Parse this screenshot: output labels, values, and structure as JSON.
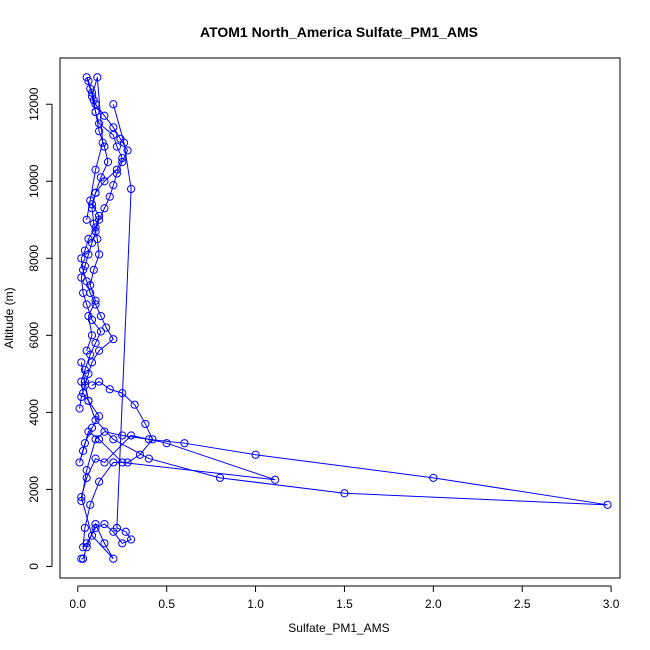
{
  "chart_data": {
    "type": "line",
    "title": "ATOM1 North_America Sulfate_PM1_AMS",
    "xlabel": "Sulfate_PM1_AMS",
    "ylabel": "Altitude (m)",
    "xlim": [
      -0.1,
      3.05
    ],
    "ylim": [
      -300,
      13200
    ],
    "x_ticks": [
      0.0,
      0.5,
      1.0,
      1.5,
      2.0,
      2.5,
      3.0
    ],
    "x_tick_labels": [
      "0.0",
      "0.5",
      "1.0",
      "1.5",
      "2.0",
      "2.5",
      "3.0"
    ],
    "y_ticks": [
      0,
      2000,
      4000,
      6000,
      8000,
      10000,
      12000
    ],
    "y_tick_labels": [
      "0",
      "2000",
      "4000",
      "6000",
      "8000",
      "10000",
      "12000"
    ],
    "grid": false,
    "legend": "none",
    "color": "#0000ff",
    "series": [
      {
        "x": [
          0.02,
          0.03,
          0.05,
          0.1,
          0.15,
          0.2,
          0.08,
          0.02,
          0.05,
          0.1,
          0.15,
          0.3,
          0.5,
          1.11,
          0.25,
          0.12,
          0.06,
          0.03,
          0.01,
          0.04,
          0.08,
          0.12,
          0.06,
          0.03,
          0.02,
          0.04,
          0.07,
          0.1,
          0.13,
          0.08,
          0.05,
          0.03,
          0.02,
          0.04,
          0.06,
          0.08,
          0.1,
          0.12,
          0.15,
          0.18,
          0.2,
          0.22,
          0.25,
          0.28,
          0.24,
          0.2,
          0.15,
          0.1,
          0.08,
          0.06,
          0.05,
          0.07,
          0.09,
          0.1,
          0.12,
          0.2,
          0.22,
          0.25,
          0.22,
          0.15,
          0.1,
          0.08,
          0.12,
          0.1,
          0.06,
          0.04,
          0.02,
          0.03,
          0.05,
          0.07,
          0.1,
          0.13,
          0.16,
          0.2,
          0.12,
          0.08,
          0.06,
          0.04,
          0.02,
          0.01
        ],
        "y": [
          200,
          200,
          500,
          1100,
          600,
          200,
          800,
          1800,
          2300,
          2800,
          2700,
          3400,
          3200,
          2250,
          2700,
          3300,
          3500,
          3000,
          2700,
          3200,
          3600,
          3900,
          4300,
          4500,
          4800,
          5100,
          5500,
          5800,
          6100,
          6400,
          6800,
          7100,
          7500,
          7800,
          8100,
          8400,
          8700,
          9000,
          9300,
          9600,
          9900,
          10200,
          10500,
          10800,
          11100,
          11400,
          11700,
          12000,
          12300,
          12600,
          12700,
          12400,
          12100,
          11800,
          11500,
          11200,
          10900,
          10600,
          10300,
          10000,
          9700,
          9400,
          9100,
          8800,
          8500,
          8200,
          8000,
          7700,
          7400,
          7100,
          6800,
          6500,
          6200,
          5900,
          5600,
          5300,
          5000,
          4700,
          4400,
          4100
        ]
      },
      {
        "x": [
          0.02,
          0.05,
          0.1,
          0.15,
          0.25,
          0.4,
          0.6,
          1.0,
          2.0,
          2.98,
          1.5,
          0.8,
          0.4,
          0.2,
          0.1,
          0.06,
          0.04,
          0.02
        ],
        "y": [
          1700,
          2500,
          3300,
          3500,
          3400,
          3300,
          3200,
          2900,
          2300,
          1600,
          1900,
          2300,
          2800,
          3300,
          3800,
          4300,
          4800,
          5300
        ]
      },
      {
        "x": [
          0.08,
          0.12,
          0.18,
          0.25,
          0.32,
          0.38,
          0.42,
          0.35,
          0.28,
          0.2,
          0.12,
          0.07,
          0.04,
          0.03,
          0.05,
          0.1,
          0.15,
          0.2,
          0.25,
          0.3,
          0.27,
          0.22,
          0.3,
          0.26,
          0.2
        ],
        "y": [
          4700,
          4800,
          4600,
          4500,
          4200,
          3700,
          3300,
          2900,
          2700,
          2700,
          2200,
          1600,
          1000,
          500,
          600,
          1000,
          1100,
          900,
          600,
          700,
          900,
          1000,
          9800,
          11000,
          12000
        ]
      },
      {
        "x": [
          0.05,
          0.08,
          0.06,
          0.1,
          0.07,
          0.09,
          0.12,
          0.11,
          0.09,
          0.08,
          0.1,
          0.13,
          0.17,
          0.15,
          0.12,
          0.1,
          0.08,
          0.11,
          0.14,
          0.1,
          0.07,
          0.05
        ],
        "y": [
          5600,
          6000,
          6500,
          6900,
          7300,
          7700,
          8100,
          8500,
          8900,
          9300,
          9700,
          10100,
          10500,
          10900,
          11300,
          11800,
          12200,
          12700,
          11000,
          10300,
          9500,
          9000
        ]
      }
    ]
  }
}
